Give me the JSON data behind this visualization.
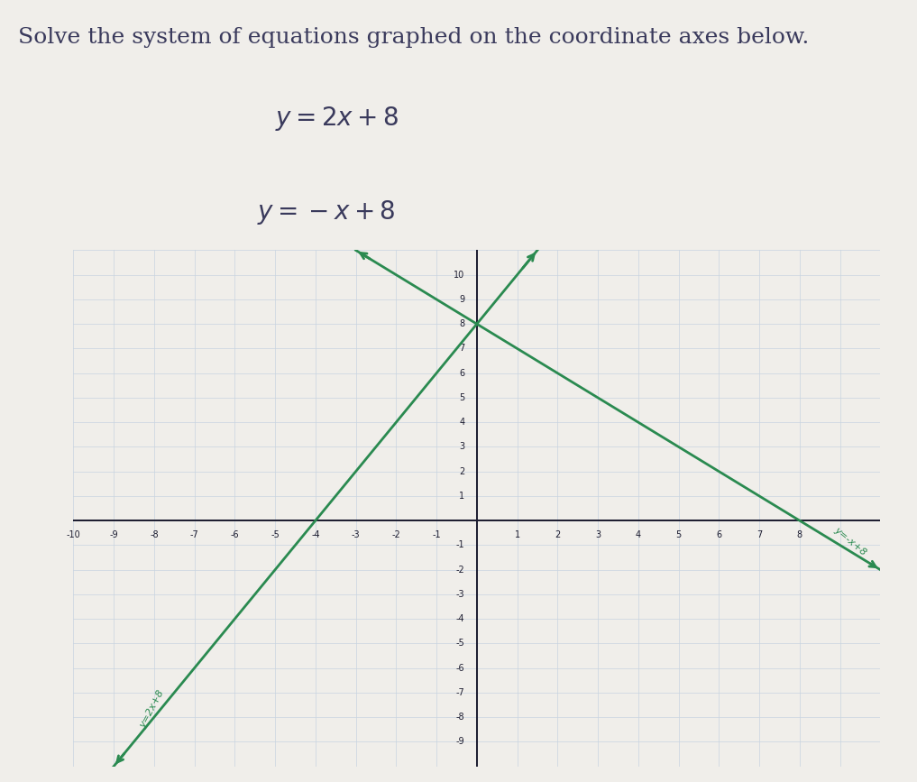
{
  "title": "Solve the system of equations graphed on the coordinate axes below.",
  "title_fontsize": 18,
  "eq_fontsize": 20,
  "background_color": "#f0eeea",
  "grid_color": "#c8d4e0",
  "line_color": "#2a8a50",
  "axis_color": "#1a1a2e",
  "text_color": "#3a3a5c",
  "xlim": [
    -10,
    10
  ],
  "ylim": [
    -10,
    11
  ],
  "xticks": [
    -10,
    -9,
    -8,
    -7,
    -6,
    -5,
    -4,
    -3,
    -2,
    -1,
    1,
    2,
    3,
    4,
    5,
    6,
    7,
    8
  ],
  "yticks": [
    -9,
    -8,
    -7,
    -6,
    -5,
    -4,
    -3,
    -2,
    -1,
    1,
    2,
    3,
    4,
    5,
    6,
    7,
    8,
    9,
    10
  ],
  "label1": "y=2x+8",
  "label2": "y=-x+8",
  "slope1": 2,
  "intercept1": 8,
  "slope2": -1,
  "intercept2": 8
}
